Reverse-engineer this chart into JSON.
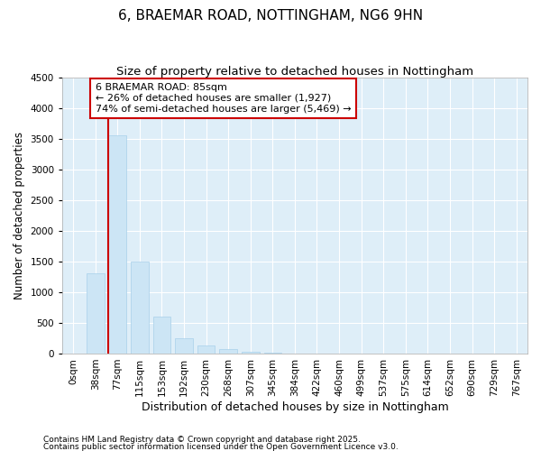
{
  "title": "6, BRAEMAR ROAD, NOTTINGHAM, NG6 9HN",
  "subtitle": "Size of property relative to detached houses in Nottingham",
  "xlabel": "Distribution of detached houses by size in Nottingham",
  "ylabel": "Number of detached properties",
  "categories": [
    "0sqm",
    "38sqm",
    "77sqm",
    "115sqm",
    "153sqm",
    "192sqm",
    "230sqm",
    "268sqm",
    "307sqm",
    "345sqm",
    "384sqm",
    "422sqm",
    "460sqm",
    "499sqm",
    "537sqm",
    "575sqm",
    "614sqm",
    "652sqm",
    "690sqm",
    "729sqm",
    "767sqm"
  ],
  "values": [
    0,
    1300,
    3550,
    1500,
    600,
    250,
    130,
    70,
    30,
    10,
    4,
    2,
    1,
    0,
    0,
    0,
    0,
    0,
    0,
    0,
    0
  ],
  "bar_color": "#cce5f5",
  "bar_edge_color": "#a8d0ea",
  "highlight_color": "#cc0000",
  "annotation_text_line1": "6 BRAEMAR ROAD: 85sqm",
  "annotation_text_line2": "← 26% of detached houses are smaller (1,927)",
  "annotation_text_line3": "74% of semi-detached houses are larger (5,469) →",
  "annotation_box_color": "#cc0000",
  "vline_bar_index": 2,
  "ylim": [
    0,
    4500
  ],
  "yticks": [
    0,
    500,
    1000,
    1500,
    2000,
    2500,
    3000,
    3500,
    4000,
    4500
  ],
  "plot_bg_color": "#deeef8",
  "footer_line1": "Contains HM Land Registry data © Crown copyright and database right 2025.",
  "footer_line2": "Contains public sector information licensed under the Open Government Licence v3.0.",
  "title_fontsize": 11,
  "subtitle_fontsize": 9.5,
  "ylabel_fontsize": 8.5,
  "xlabel_fontsize": 9,
  "tick_fontsize": 7.5,
  "ann_fontsize": 8,
  "footer_fontsize": 6.5
}
